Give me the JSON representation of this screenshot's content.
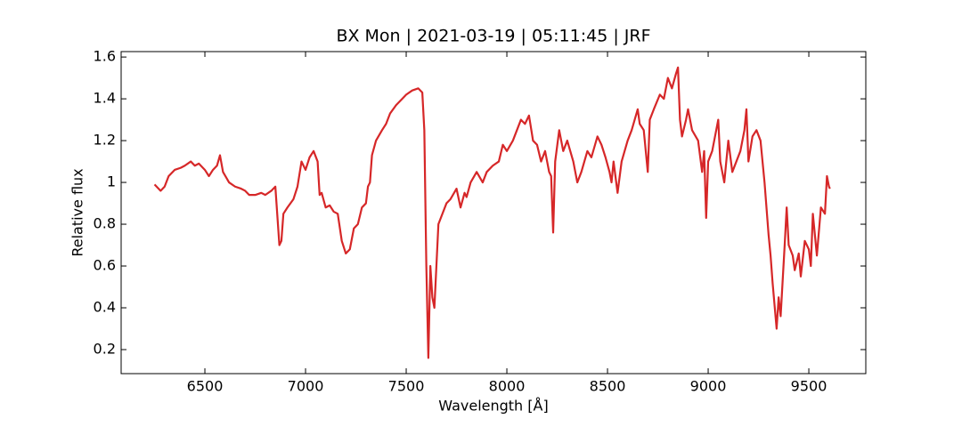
{
  "chart_data": {
    "type": "line",
    "title": "BX Mon | 2021-03-19 | 05:11:45 | JRF",
    "x_label": "Wavelength [Å]",
    "y_label": "Relative flux",
    "xlim": [
      6084,
      9783
    ],
    "ylim": [
      0.085,
      1.626
    ],
    "xticks": [
      6500,
      7000,
      7500,
      8000,
      8500,
      9000,
      9500
    ],
    "yticks": [
      0.2,
      0.4,
      0.6,
      0.8,
      1.0,
      1.2,
      1.4,
      1.6
    ],
    "grid": false,
    "series": [
      {
        "color": "#d62728",
        "x": [
          6250,
          6280,
          6300,
          6320,
          6350,
          6380,
          6400,
          6430,
          6450,
          6470,
          6500,
          6520,
          6540,
          6560,
          6575,
          6590,
          6620,
          6650,
          6680,
          6700,
          6720,
          6750,
          6780,
          6800,
          6830,
          6850,
          6870,
          6880,
          6890,
          6910,
          6940,
          6960,
          6980,
          7000,
          7020,
          7040,
          7060,
          7070,
          7080,
          7100,
          7120,
          7140,
          7160,
          7180,
          7200,
          7220,
          7240,
          7260,
          7280,
          7300,
          7310,
          7320,
          7330,
          7350,
          7380,
          7400,
          7420,
          7450,
          7480,
          7500,
          7530,
          7560,
          7580,
          7590,
          7600,
          7610,
          7620,
          7630,
          7640,
          7660,
          7680,
          7700,
          7720,
          7750,
          7770,
          7790,
          7800,
          7820,
          7850,
          7880,
          7900,
          7930,
          7960,
          7980,
          8000,
          8030,
          8050,
          8070,
          8090,
          8110,
          8130,
          8150,
          8170,
          8190,
          8210,
          8220,
          8230,
          8240,
          8260,
          8280,
          8300,
          8330,
          8350,
          8370,
          8400,
          8420,
          8450,
          8470,
          8490,
          8510,
          8520,
          8530,
          8550,
          8570,
          8600,
          8620,
          8650,
          8660,
          8680,
          8700,
          8710,
          8730,
          8760,
          8780,
          8800,
          8820,
          8840,
          8850,
          8860,
          8870,
          8890,
          8900,
          8920,
          8950,
          8970,
          8980,
          8990,
          9000,
          9020,
          9050,
          9060,
          9080,
          9100,
          9120,
          9140,
          9160,
          9180,
          9190,
          9200,
          9220,
          9240,
          9260,
          9280,
          9300,
          9310,
          9320,
          9340,
          9350,
          9360,
          9380,
          9390,
          9400,
          9420,
          9430,
          9440,
          9450,
          9460,
          9480,
          9500,
          9510,
          9520,
          9540,
          9560,
          9580,
          9590,
          9600,
          9605
        ],
        "values": [
          0.99,
          0.96,
          0.98,
          1.03,
          1.06,
          1.07,
          1.08,
          1.1,
          1.08,
          1.09,
          1.06,
          1.03,
          1.06,
          1.08,
          1.13,
          1.05,
          1.0,
          0.98,
          0.97,
          0.96,
          0.94,
          0.94,
          0.95,
          0.94,
          0.96,
          0.98,
          0.7,
          0.72,
          0.85,
          0.88,
          0.92,
          0.98,
          1.1,
          1.06,
          1.12,
          1.15,
          1.1,
          0.94,
          0.95,
          0.88,
          0.89,
          0.86,
          0.85,
          0.72,
          0.66,
          0.68,
          0.78,
          0.8,
          0.88,
          0.9,
          0.98,
          1.0,
          1.13,
          1.2,
          1.25,
          1.28,
          1.33,
          1.37,
          1.4,
          1.42,
          1.44,
          1.45,
          1.43,
          1.25,
          0.6,
          0.16,
          0.6,
          0.45,
          0.4,
          0.8,
          0.85,
          0.9,
          0.92,
          0.97,
          0.88,
          0.95,
          0.93,
          1.0,
          1.05,
          1.0,
          1.05,
          1.08,
          1.1,
          1.18,
          1.15,
          1.2,
          1.25,
          1.3,
          1.28,
          1.32,
          1.2,
          1.18,
          1.1,
          1.15,
          1.05,
          1.03,
          0.76,
          1.1,
          1.25,
          1.15,
          1.2,
          1.1,
          1.0,
          1.05,
          1.15,
          1.12,
          1.22,
          1.18,
          1.12,
          1.05,
          1.0,
          1.1,
          0.95,
          1.1,
          1.2,
          1.25,
          1.35,
          1.28,
          1.25,
          1.05,
          1.3,
          1.35,
          1.42,
          1.4,
          1.5,
          1.45,
          1.52,
          1.55,
          1.3,
          1.22,
          1.3,
          1.35,
          1.25,
          1.2,
          1.05,
          1.15,
          0.83,
          1.1,
          1.15,
          1.3,
          1.1,
          1.0,
          1.2,
          1.05,
          1.1,
          1.15,
          1.25,
          1.35,
          1.1,
          1.22,
          1.25,
          1.2,
          1.0,
          0.75,
          0.65,
          0.52,
          0.3,
          0.45,
          0.36,
          0.7,
          0.88,
          0.7,
          0.65,
          0.58,
          0.62,
          0.66,
          0.55,
          0.72,
          0.68,
          0.6,
          0.85,
          0.65,
          0.88,
          0.85,
          1.03,
          0.98,
          0.97
        ]
      }
    ]
  }
}
